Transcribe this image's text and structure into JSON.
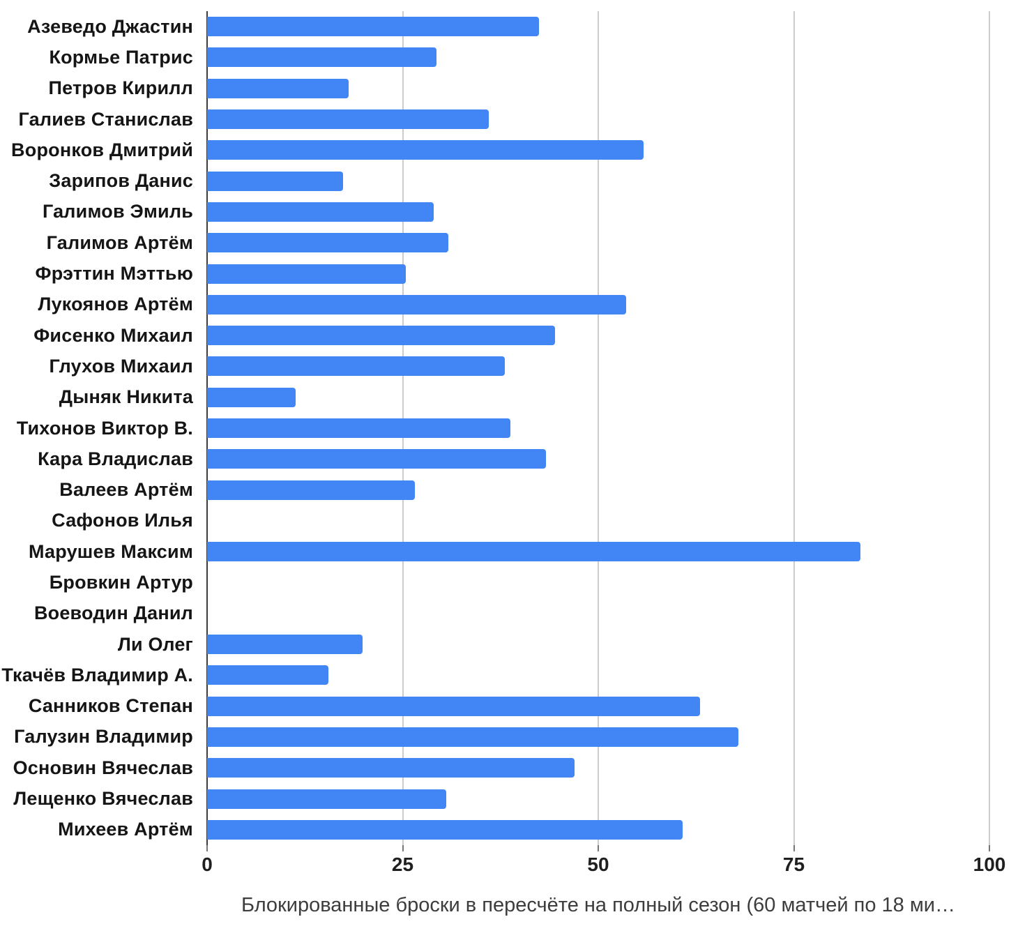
{
  "chart_data": {
    "type": "bar",
    "orientation": "horizontal",
    "title": "Блокированные броски в пересчёте на полный сезон (60 матчей по 18 ми…",
    "categories": [
      "Азеведо Джастин",
      "Кормье Патрис",
      "Петров Кирилл",
      "Галиев Станислав",
      "Воронков Дмитрий",
      "Зарипов Данис",
      "Галимов Эмиль",
      "Галимов Артём",
      "Фрэттин Мэттью",
      "Лукоянов Артём",
      "Фисенко Михаил",
      "Глухов Михаил",
      "Дыняк Никита",
      "Тихонов Виктор В.",
      "Кара Владислав",
      "Валеев Артём",
      "Сафонов Илья",
      "Марушев Максим",
      "Бровкин Артур",
      "Воеводин Данил",
      "Ли Олег",
      "Ткачёв Владимир А.",
      "Санников Степан",
      "Галузин Владимир",
      "Основин Вячеслав",
      "Лещенко Вячеслав",
      "Михеев Артём"
    ],
    "values": [
      42.4,
      29.3,
      18.1,
      36.0,
      55.8,
      17.4,
      29.0,
      30.8,
      25.4,
      53.6,
      44.5,
      38.1,
      11.3,
      38.8,
      43.3,
      26.6,
      0,
      83.5,
      0,
      0,
      19.9,
      15.5,
      63.0,
      67.9,
      47.0,
      30.6,
      60.8
    ],
    "xticks": [
      0,
      25,
      50,
      75,
      100
    ],
    "xlim": [
      0,
      100
    ],
    "grid": true,
    "legend": "none",
    "bar_color": "#4285F4",
    "gridline_color": "#cccccc",
    "axis_line_color": "#3c3c3c",
    "label_color": "#151515",
    "tick_label_color": "#1f1f1f",
    "title_color": "#3d3d3d"
  }
}
